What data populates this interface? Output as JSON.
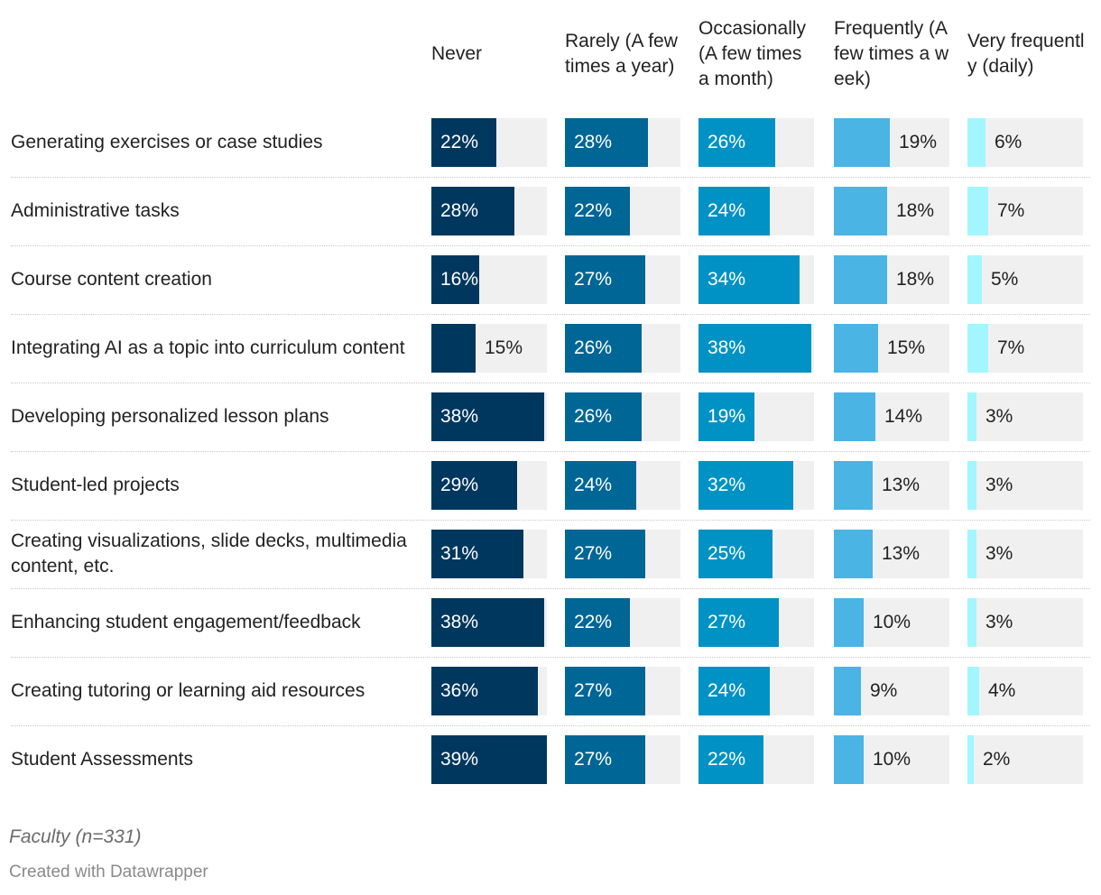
{
  "chart_data": {
    "type": "bar",
    "columns": [
      "Never",
      "Rarely (A few times a year)",
      "Occasionally (A few times a month)",
      "Frequently (A few times a week)",
      "Very frequently (daily)"
    ],
    "colors": [
      "#00375e",
      "#006696",
      "#0092c4",
      "#4ab4e4",
      "#a2f6ff"
    ],
    "xlim": [
      0,
      39
    ],
    "rows": [
      {
        "label": "Generating exercises or case studies",
        "values": [
          22,
          28,
          26,
          19,
          6
        ],
        "labels": [
          "22%",
          "28%",
          "26%",
          "19%",
          "6%"
        ]
      },
      {
        "label": "Administrative tasks",
        "values": [
          28,
          22,
          24,
          18,
          7
        ],
        "labels": [
          "28%",
          "22%",
          "24%",
          "18%",
          "7%"
        ]
      },
      {
        "label": "Course content creation",
        "values": [
          16,
          27,
          34,
          18,
          5
        ],
        "labels": [
          "16%",
          "27%",
          "34%",
          "18%",
          "5%"
        ]
      },
      {
        "label": "Integrating AI as a topic into curriculum content",
        "values": [
          15,
          26,
          38,
          15,
          7
        ],
        "labels": [
          "15%",
          "26%",
          "38%",
          "15%",
          "7%"
        ]
      },
      {
        "label": "Developing personalized lesson plans",
        "values": [
          38,
          26,
          19,
          14,
          3
        ],
        "labels": [
          "38%",
          "26%",
          "19%",
          "14%",
          "3%"
        ]
      },
      {
        "label": "Student-led projects",
        "values": [
          29,
          24,
          32,
          13,
          3
        ],
        "labels": [
          "29%",
          "24%",
          "32%",
          "13%",
          "3%"
        ]
      },
      {
        "label": "Creating visualizations, slide decks, multimedia content, etc.",
        "values": [
          31,
          27,
          25,
          13,
          3
        ],
        "labels": [
          "31%",
          "27%",
          "25%",
          "13%",
          "3%"
        ]
      },
      {
        "label": "Enhancing student engagement/feedback",
        "values": [
          38,
          22,
          27,
          10,
          3
        ],
        "labels": [
          "38%",
          "22%",
          "27%",
          "10%",
          "3%"
        ]
      },
      {
        "label": "Creating tutoring or learning aid resources",
        "values": [
          36,
          27,
          24,
          9,
          4
        ],
        "labels": [
          "36%",
          "27%",
          "24%",
          "9%",
          "4%"
        ]
      },
      {
        "label": "Student Assessments",
        "values": [
          39,
          27,
          22,
          10,
          2
        ],
        "labels": [
          "39%",
          "27%",
          "22%",
          "10%",
          "2%"
        ]
      }
    ]
  },
  "footer": {
    "note": "Faculty (n=331)",
    "credit": "Created with Datawrapper"
  }
}
